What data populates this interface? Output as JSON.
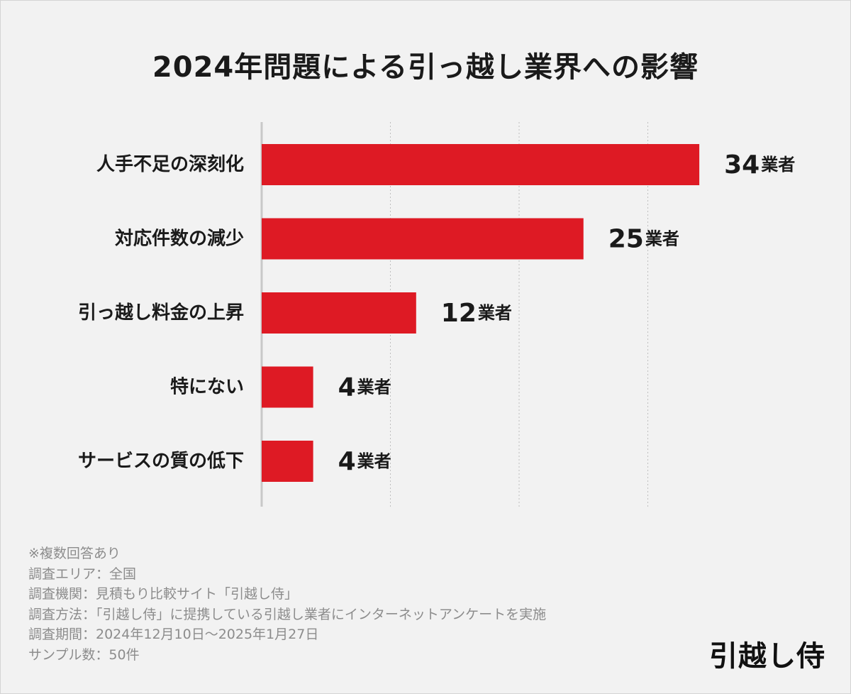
{
  "title": "2024年問題による引っ越し業界への影響",
  "colors": {
    "bar": "#de1a24",
    "text": "#1a1a1a",
    "note_text": "#8c8c8c",
    "grid": "#bfbfbf",
    "axis": "#c8c8c8",
    "background": "#f2f2f2"
  },
  "chart_data": {
    "type": "bar",
    "orientation": "horizontal",
    "title": "2024年問題による引っ越し業界への影響",
    "categories": [
      "人手不足の深刻化",
      "対応件数の減少",
      "引っ越し料金の上昇",
      "特にない",
      "サービスの質の低下"
    ],
    "values": [
      34,
      25,
      12,
      4,
      4
    ],
    "value_unit": "業者",
    "xlim": [
      0,
      35
    ],
    "grid": "vertical dashed",
    "legend": "none"
  },
  "notes": [
    "※複数回答あり",
    "調査エリア：全国",
    "調査機関：見積もり比較サイト「引越し侍」",
    "調査方法：「引越し侍」に提携している引越し業者にインターネットアンケートを実施",
    "調査期間：2024年12月10日～2025年1月27日",
    "サンプル数：50件"
  ],
  "brand": "引越し侍"
}
